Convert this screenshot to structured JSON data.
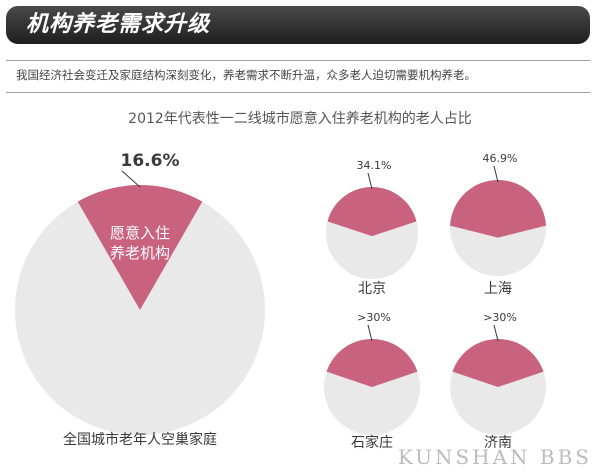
{
  "header": {
    "title": "机构养老需求升级",
    "intro": "我国经济社会变迁及家庭结构深刻变化，养老需求不断升温，众多老人迫切需要机构养老。"
  },
  "colors": {
    "slice": "#c9627f",
    "remainder": "#e9e9e9",
    "text": "#3a3a3a",
    "banner": "#2a2a2a"
  },
  "chart_data": {
    "type": "pie",
    "title": "2012年代表性一二线城市愿意入住养老机构的老人占比",
    "pies": [
      {
        "id": "national",
        "label": "全国城市老年人空巢家庭",
        "value_text": "16.6%",
        "value": 16.6,
        "slice_label": [
          "愿意入住",
          "养老机构"
        ]
      },
      {
        "id": "beijing",
        "label": "北京",
        "value_text": "34.1%",
        "value": 34.1
      },
      {
        "id": "shanghai",
        "label": "上海",
        "value_text": "46.9%",
        "value": 46.9
      },
      {
        "id": "shijiazhuang",
        "label": "石家庄",
        "value_text": ">30%",
        "value": 30
      },
      {
        "id": "jinan",
        "label": "济南",
        "value_text": ">30%",
        "value": 30
      }
    ]
  },
  "watermark": "KUNSHAN BBS"
}
